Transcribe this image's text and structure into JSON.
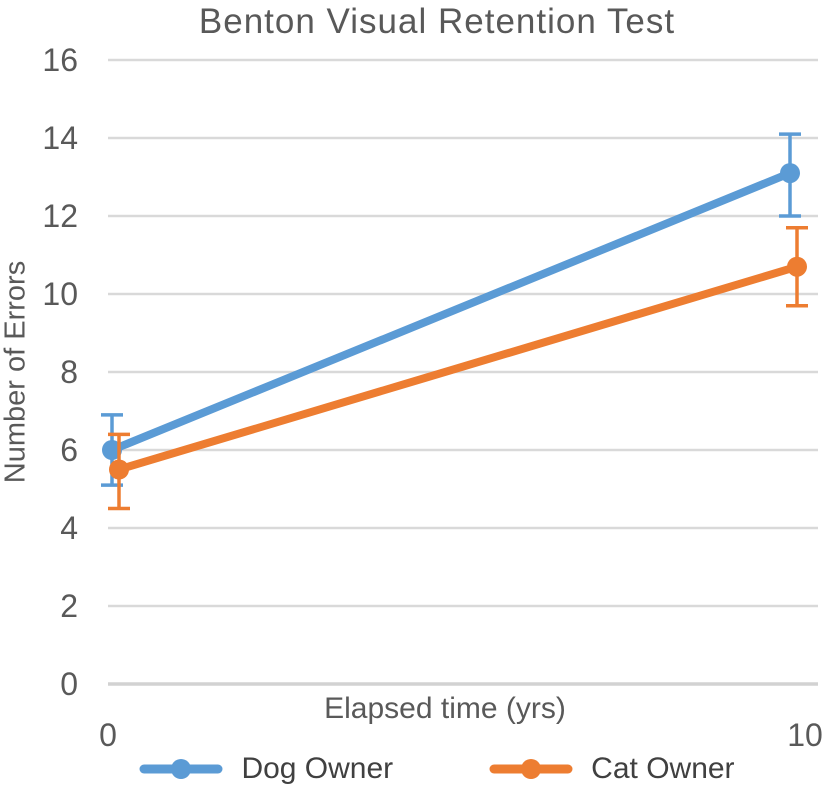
{
  "chart_data": {
    "type": "line",
    "title": "Benton Visual Retention Test",
    "xlabel": "Elapsed time (yrs)",
    "ylabel": "Number of Errors",
    "x": [
      0,
      10
    ],
    "xtick_labels": [
      "0",
      "10"
    ],
    "yticks": [
      16,
      14,
      12,
      10,
      8,
      6,
      4,
      2,
      0
    ],
    "ylim": [
      0,
      16
    ],
    "grid": "horizontal",
    "legend_position": "bottom",
    "error_bars": true,
    "series": [
      {
        "name": "Dog Owner",
        "color": "#5B9BD5",
        "values": [
          6.0,
          13.1
        ],
        "error_low": [
          5.1,
          12.0
        ],
        "error_high": [
          6.9,
          14.1
        ]
      },
      {
        "name": "Cat Owner",
        "color": "#ED7D31",
        "values": [
          5.5,
          10.7
        ],
        "error_low": [
          4.5,
          9.7
        ],
        "error_high": [
          6.4,
          11.7
        ]
      }
    ]
  },
  "colors": {
    "text": "#595959",
    "grid": "#D9D9D9",
    "axis_line": "#D2D2D2"
  }
}
